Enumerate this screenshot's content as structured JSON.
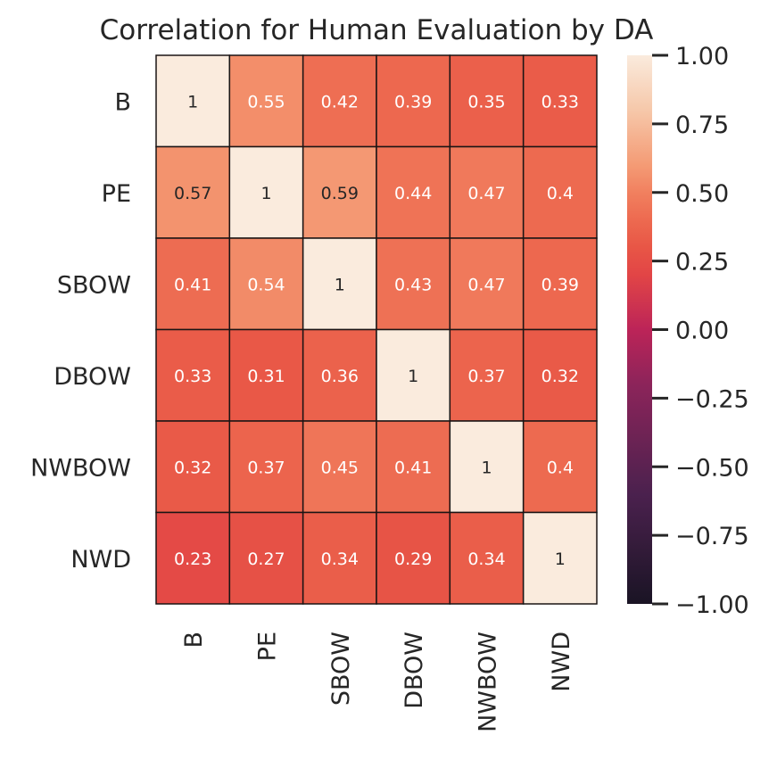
{
  "chart_data": {
    "type": "heatmap",
    "title": "Correlation for Human Evaluation by DA",
    "xlabel": "",
    "ylabel": "",
    "rows": [
      "B",
      "PE",
      "SBOW",
      "DBOW",
      "NWBOW",
      "NWD"
    ],
    "cols": [
      "B",
      "PE",
      "SBOW",
      "DBOW",
      "NWBOW",
      "NWD"
    ],
    "values": [
      [
        1,
        0.55,
        0.42,
        0.39,
        0.35,
        0.33
      ],
      [
        0.57,
        1,
        0.59,
        0.44,
        0.47,
        0.4
      ],
      [
        0.41,
        0.54,
        1,
        0.43,
        0.47,
        0.39
      ],
      [
        0.33,
        0.31,
        0.36,
        1,
        0.37,
        0.32
      ],
      [
        0.32,
        0.37,
        0.45,
        0.41,
        1,
        0.4
      ],
      [
        0.23,
        0.27,
        0.34,
        0.29,
        0.34,
        1
      ]
    ],
    "vmin": -1,
    "vmax": 1,
    "colorbar_ticks": [
      "1.00",
      "0.75",
      "0.50",
      "0.25",
      "0.00",
      "−0.25",
      "−0.50",
      "−0.75",
      "−1.00"
    ],
    "colormap": "rocket",
    "annotate": true,
    "grid": false,
    "legend": "colorbar-right"
  }
}
